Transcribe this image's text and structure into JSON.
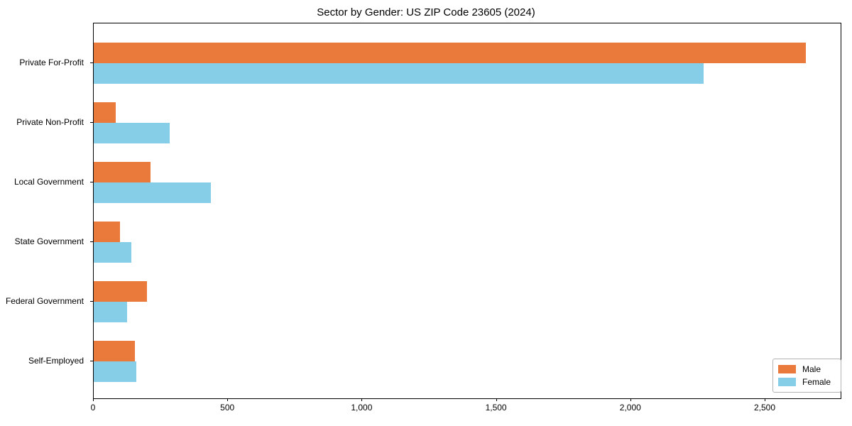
{
  "chart_data": {
    "type": "bar",
    "orientation": "horizontal",
    "title": "Sector by Gender: US ZIP Code 23605 (2024)",
    "categories": [
      "Private For-Profit",
      "Private Non-Profit",
      "Local Government",
      "State Government",
      "Federal Government",
      "Self-Employed"
    ],
    "series": [
      {
        "name": "Male",
        "color": "#EA7A3C",
        "values": [
          2650,
          82,
          210,
          97,
          198,
          153
        ]
      },
      {
        "name": "Female",
        "color": "#86CEE8",
        "values": [
          2270,
          282,
          437,
          140,
          124,
          158
        ]
      }
    ],
    "xlabel": "",
    "ylabel": "",
    "xlim": [
      0,
      2780
    ],
    "x_ticks": [
      {
        "value": 0,
        "label": "0"
      },
      {
        "value": 500,
        "label": "500"
      },
      {
        "value": 1000,
        "label": "1,000"
      },
      {
        "value": 1500,
        "label": "1,500"
      },
      {
        "value": 2000,
        "label": "2,000"
      },
      {
        "value": 2500,
        "label": "2,500"
      }
    ],
    "grid": false,
    "legend_position": "lower right"
  }
}
